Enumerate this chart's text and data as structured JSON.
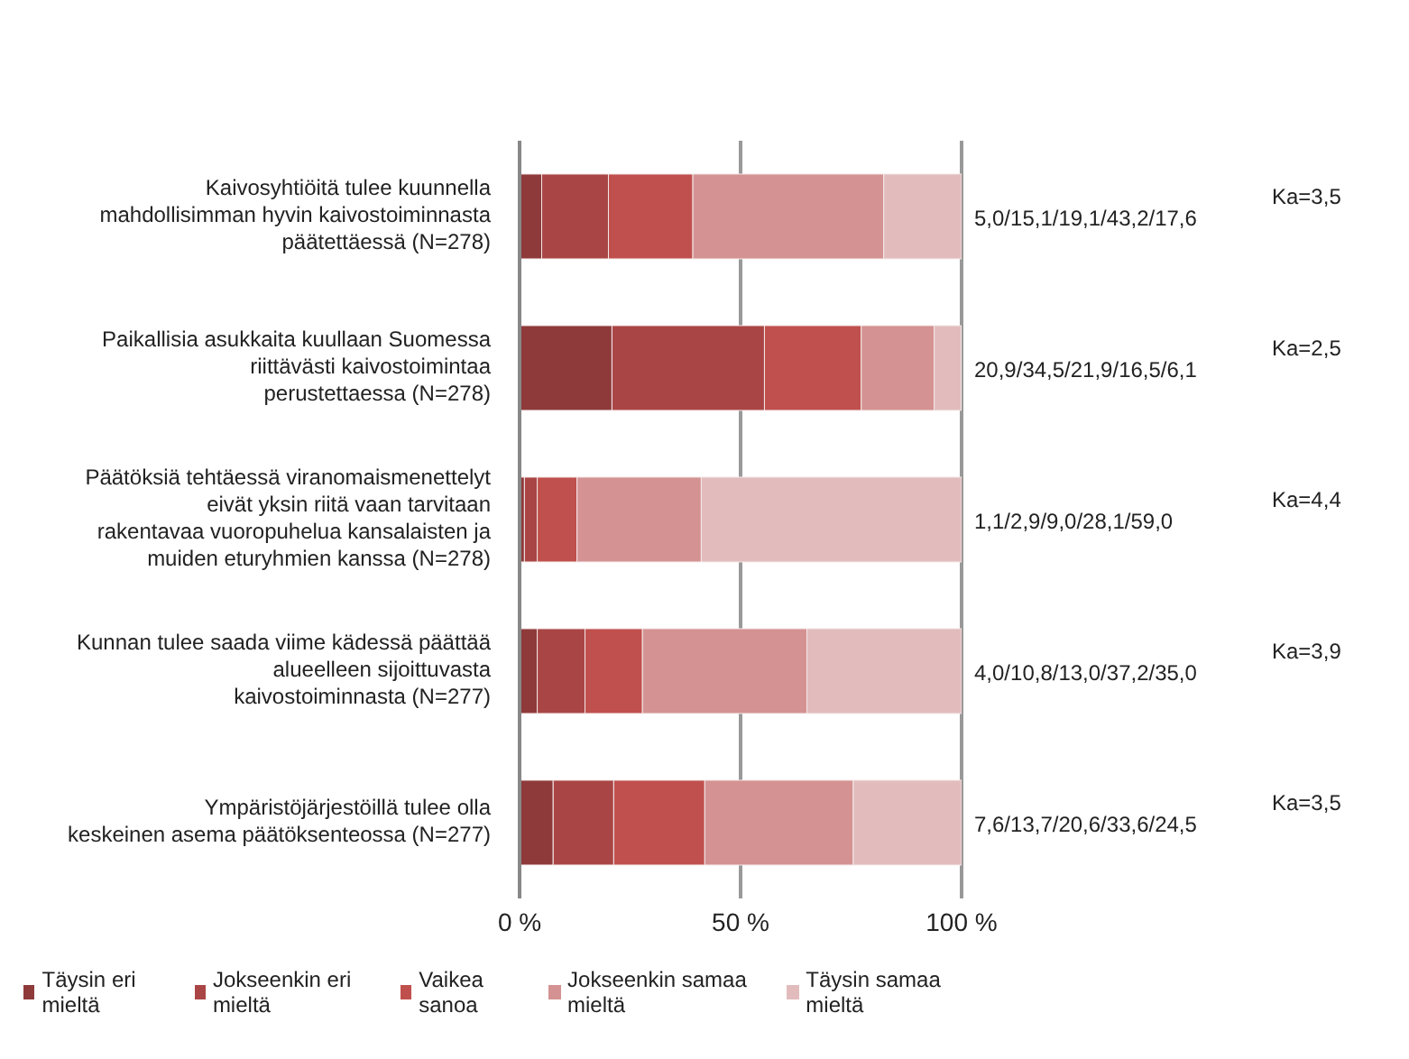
{
  "chart_data": {
    "type": "bar",
    "orientation": "horizontal",
    "stacked": true,
    "categories": [
      "Kaivosyhtiöitä tulee kuunnella mahdollisimman hyvin kaivostoiminnasta päätettäessä (N=278)",
      "Paikallisia asukkaita kuullaan Suomessa riittävästi kaivostoimintaa perustettaessa (N=278)",
      "Päätöksiä tehtäessä viranomaismenettelyt eivät yksin riitä vaan tarvitaan rakentavaa vuoropuhelua kansalaisten ja muiden eturyhmien kanssa (N=278)",
      "Kunnan tulee saada viime kädessä päättää alueelleen sijoittuvasta kaivostoiminnasta (N=277)",
      "Ympäristöjärjestöillä tulee olla keskeinen asema päätöksenteossa (N=277)"
    ],
    "series": [
      {
        "name": "Täysin eri mieltä",
        "color": "#8e3a3a",
        "values": [
          5.0,
          20.9,
          1.1,
          4.0,
          7.6
        ]
      },
      {
        "name": "Jokseenkin eri mieltä",
        "color": "#a94645",
        "values": [
          15.1,
          34.5,
          2.9,
          10.8,
          13.7
        ]
      },
      {
        "name": "Vaikea sanoa",
        "color": "#c0504d",
        "values": [
          19.1,
          21.9,
          9.0,
          13.0,
          20.6
        ]
      },
      {
        "name": "Jokseenkin samaa mieltä",
        "color": "#d49292",
        "values": [
          43.2,
          16.5,
          28.1,
          37.2,
          33.6
        ]
      },
      {
        "name": "Täysin samaa mieltä",
        "color": "#e2bcbc",
        "values": [
          17.6,
          6.1,
          59.0,
          35.0,
          24.5
        ]
      }
    ],
    "xlim": [
      0,
      100
    ],
    "xticks": [
      {
        "value": 0,
        "label": "0 %"
      },
      {
        "value": 50,
        "label": "50 %"
      },
      {
        "value": 100,
        "label": "100 %"
      }
    ],
    "grid": "x",
    "legend": "bottom",
    "annotations": [
      "5,0/15,1/19,1/43,2/17,6",
      "Ka=3,5",
      "20,9/34,5/21,9/16,5/6,1",
      "Ka=2,5",
      "1,1/2,9/9,0/28,1/59,0",
      "Ka=4,4",
      "4,0/10,8/13,0/37,2/35,0",
      "Ka=3,9",
      "7,6/13,7/20,6/33,6/24,5",
      "Ka=3,5"
    ]
  }
}
